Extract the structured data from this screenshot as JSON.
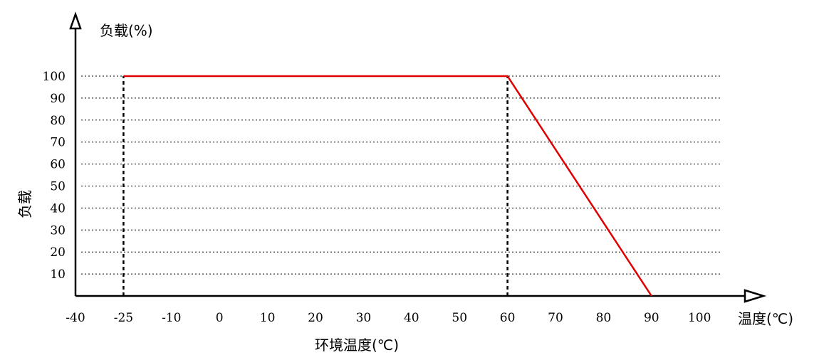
{
  "chart_data": {
    "type": "line",
    "y_axis_title": "负载(%)",
    "y_axis_side_label": "负载",
    "x_axis_end_label": "温度(℃)",
    "x_axis_title": "环境温度(℃)",
    "x_ticks": [
      "-40",
      "-25",
      "-10",
      "0",
      "10",
      "20",
      "30",
      "40",
      "50",
      "60",
      "70",
      "80",
      "90",
      "100"
    ],
    "y_ticks": [
      "100",
      "90",
      "80",
      "70",
      "60",
      "50",
      "40",
      "30",
      "20",
      "10"
    ],
    "y_range": [
      0,
      100
    ],
    "grid": true,
    "series": [
      {
        "color": "#e00000",
        "points": [
          [
            "-25",
            100
          ],
          [
            "60",
            100
          ],
          [
            "90",
            0
          ]
        ]
      }
    ],
    "reference_lines": [
      {
        "x": "-25",
        "y_from": 0,
        "y_to": 100
      },
      {
        "x": "60",
        "y_from": 0,
        "y_to": 100
      }
    ]
  }
}
